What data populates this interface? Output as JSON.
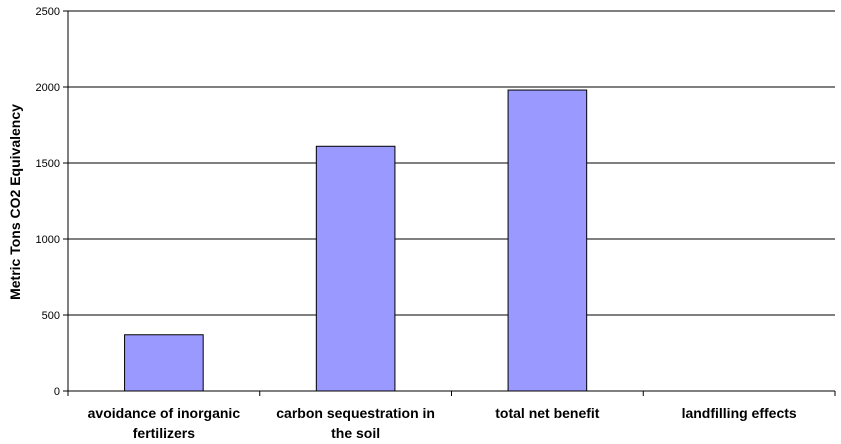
{
  "chart_data": {
    "type": "bar",
    "title": "",
    "xlabel": "",
    "ylabel": "Metric Tons CO2 Equivalency",
    "categories": [
      [
        "avoidance of inorganic",
        "fertilizers"
      ],
      [
        "carbon sequestration in",
        "the soil"
      ],
      [
        "total net benefit"
      ],
      [
        "landfilling effects"
      ]
    ],
    "values": [
      370,
      1610,
      1980,
      0
    ],
    "ylim": [
      0,
      2500
    ],
    "yticks": [
      0,
      500,
      1000,
      1500,
      2000,
      2500
    ],
    "grid": true,
    "legend": "none",
    "bar_color": "#9999ff",
    "bar_stroke": "#000000"
  }
}
